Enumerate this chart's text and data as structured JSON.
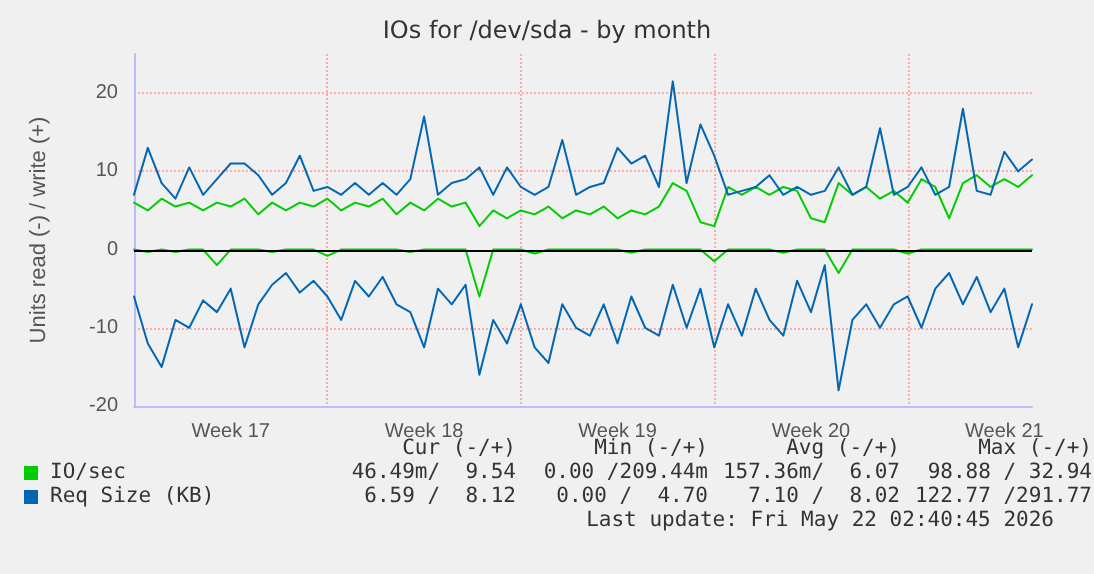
{
  "chart_data": {
    "type": "line",
    "title": "IOs for /dev/sda - by month",
    "ylabel": "Units read (-) / write (+)",
    "categories": [
      null,
      null,
      null,
      null,
      null,
      null,
      null,
      "Week 17",
      null,
      null,
      null,
      null,
      null,
      null,
      null,
      null,
      null,
      null,
      null,
      null,
      null,
      "Week 18",
      null,
      null,
      null,
      null,
      null,
      null,
      null,
      null,
      null,
      null,
      null,
      null,
      null,
      "Week 19",
      null,
      null,
      null,
      null,
      null,
      null,
      null,
      null,
      null,
      null,
      null,
      null,
      null,
      "Week 20",
      null,
      null,
      null,
      null,
      null,
      null,
      null,
      null,
      null,
      null,
      null,
      null,
      null,
      "Week 21",
      null,
      null
    ],
    "ylim": [
      -20,
      25
    ],
    "yticks": [
      -20,
      -10,
      0,
      10,
      20
    ],
    "grid": true,
    "legend": "bottom",
    "marker": "none",
    "line_style": "solid",
    "ref_lines": [
      {
        "axis": "y",
        "value": 0,
        "color": "#000000"
      }
    ],
    "series": [
      {
        "color": "#00cc00",
        "values": [
          0,
          -0.3,
          0,
          -0.3,
          0,
          0,
          -2,
          0,
          0,
          0,
          -0.3,
          0,
          0,
          0,
          -0.8,
          0,
          0,
          0,
          0,
          0,
          -0.3,
          0,
          0,
          0,
          0,
          -6,
          0,
          0,
          0,
          -0.5,
          0,
          0,
          0,
          0,
          0,
          0,
          -0.4,
          0,
          0,
          0,
          0,
          0,
          -1.5,
          0,
          0,
          0,
          0,
          -0.4,
          0,
          0,
          0,
          -3,
          0,
          0,
          0,
          0,
          -0.5,
          0,
          0,
          0,
          0,
          0,
          0,
          0,
          0,
          0
        ]
      },
      {
        "name": "IO/sec",
        "color": "#00cc00",
        "values": [
          6,
          5,
          6.5,
          5.5,
          6,
          5,
          6,
          5.5,
          6.5,
          4.5,
          6,
          5,
          6,
          5.5,
          6.5,
          5,
          6,
          5.5,
          6.5,
          4.5,
          6,
          5,
          6.5,
          5.5,
          6,
          3,
          5,
          4,
          5,
          4.5,
          5.5,
          4,
          5,
          4.5,
          5.5,
          4,
          5,
          4.5,
          5.5,
          8.5,
          7.5,
          3.5,
          3,
          8,
          7,
          8,
          7,
          8,
          7.5,
          4,
          3.5,
          8.5,
          7,
          8,
          6.5,
          7.5,
          6,
          9,
          8,
          4,
          8.5,
          9.5,
          8,
          9,
          8,
          9.5
        ]
      },
      {
        "color": "#0066b3",
        "values": [
          -6,
          -12,
          -15,
          -9,
          -10,
          -6.5,
          -8,
          -5,
          -12.5,
          -7,
          -4.5,
          -3,
          -5.5,
          -4,
          -6,
          -9,
          -4,
          -6,
          -3.5,
          -7,
          -8,
          -12.5,
          -5,
          -7,
          -4.5,
          -16,
          -9,
          -12,
          -7,
          -12.5,
          -14.5,
          -7,
          -10,
          -11,
          -7,
          -12,
          -6,
          -10,
          -11,
          -4.5,
          -10,
          -5,
          -12.5,
          -7,
          -11,
          -5,
          -9,
          -11,
          -4,
          -8,
          -2,
          -18,
          -9,
          -7,
          -10,
          -7,
          -6,
          -10,
          -5,
          -3,
          -7,
          -3.5,
          -8,
          -5,
          -12.5,
          -7
        ]
      },
      {
        "name": "Req Size (KB)",
        "color": "#0066b3",
        "values": [
          7,
          13,
          8.5,
          6.5,
          10.5,
          7,
          9,
          11,
          11,
          9.5,
          7,
          8.5,
          12,
          7.5,
          8,
          7,
          8.5,
          7,
          8.5,
          7,
          9,
          17,
          7,
          8.5,
          9,
          10.5,
          7,
          10.5,
          8,
          7,
          8,
          14,
          7,
          8,
          8.5,
          13,
          11,
          12,
          8,
          21.5,
          8.5,
          16,
          12,
          7,
          7.5,
          8,
          9.5,
          7,
          8,
          7,
          7.5,
          10.5,
          7,
          8,
          15.5,
          7,
          8,
          10.5,
          7,
          8,
          18,
          7.5,
          7,
          12.5,
          10,
          11.5
        ]
      }
    ],
    "annotations": [
      "Cur (-/+)",
      "Min (-/+)",
      "Avg (-/+)",
      "Max (-/+)",
      "46.49m/  9.54",
      "0.00 /209.44m",
      "157.36m/  6.07",
      "98.88 / 32.94",
      "6.59 /  8.12",
      "0.00 /  4.70",
      "7.10 /  8.02",
      "122.77 /291.77",
      "Last update: Fri May 22 02:40:45 2026"
    ]
  }
}
